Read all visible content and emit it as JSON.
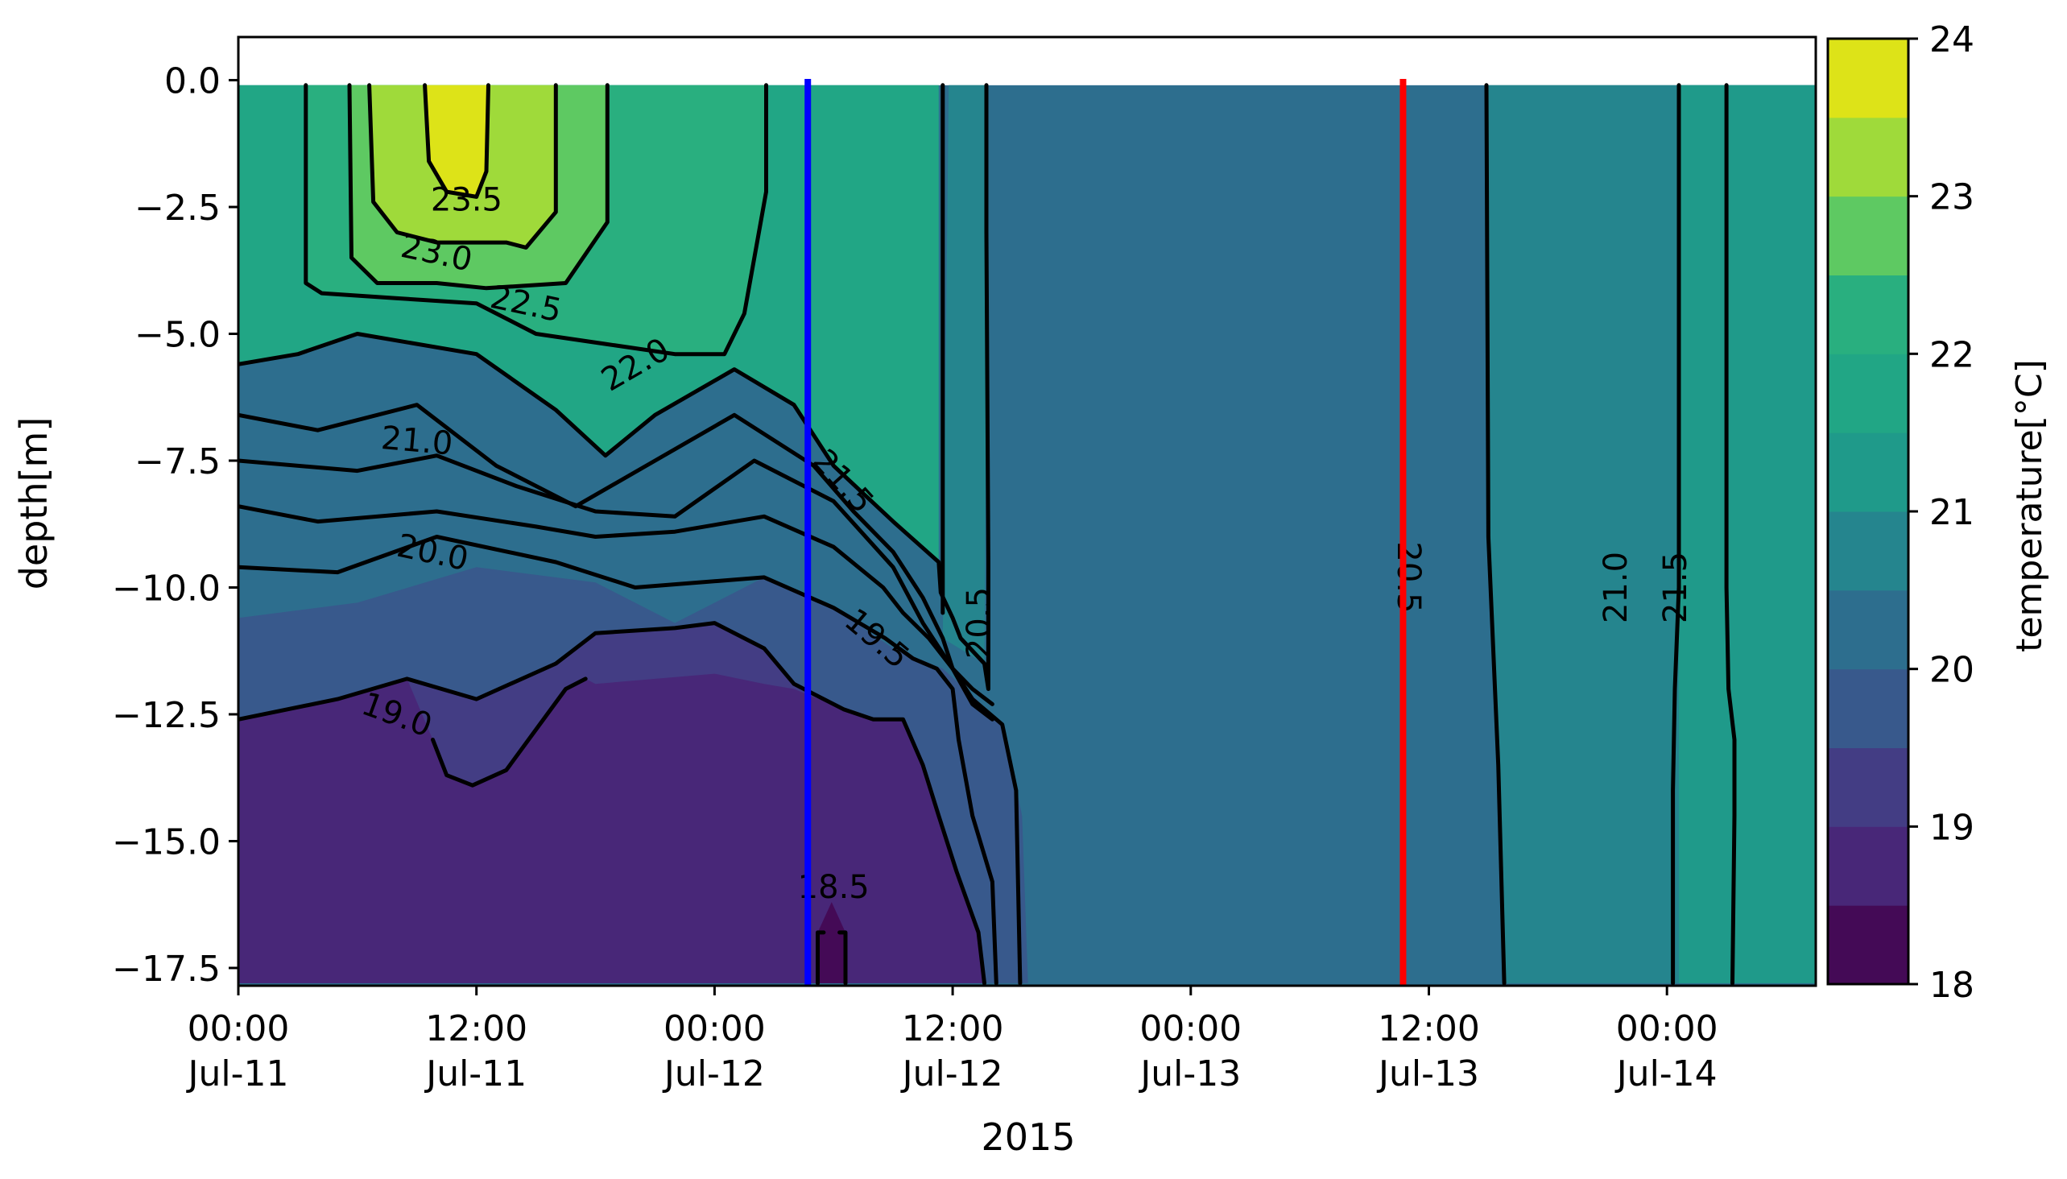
{
  "chart_data": {
    "type": "heatmap",
    "subtype": "filled-contour",
    "xlabel": "2015",
    "ylabel": "depth[m]",
    "colorbar_label": "temperature[°C]",
    "x_unit": "hours since 00:00 Jul-11",
    "x_ticks": [
      {
        "hours": 0,
        "line1": "00:00",
        "line2": "Jul-11"
      },
      {
        "hours": 12,
        "line1": "12:00",
        "line2": "Jul-11"
      },
      {
        "hours": 24,
        "line1": "00:00",
        "line2": "Jul-12"
      },
      {
        "hours": 36,
        "line1": "12:00",
        "line2": "Jul-12"
      },
      {
        "hours": 48,
        "line1": "00:00",
        "line2": "Jul-13"
      },
      {
        "hours": 60,
        "line1": "12:00",
        "line2": "Jul-13"
      },
      {
        "hours": 72,
        "line1": "00:00",
        "line2": "Jul-14"
      }
    ],
    "xlim": [
      0,
      79.5
    ],
    "ylim": [
      -17.85,
      0.85
    ],
    "y_ticks": [
      "0.0",
      "−2.5",
      "−5.0",
      "−7.5",
      "−10.0",
      "−12.5",
      "−15.0",
      "−17.5"
    ],
    "y_tick_values": [
      0.0,
      -2.5,
      -5.0,
      -7.5,
      -10.0,
      -12.5,
      -15.0,
      -17.5
    ],
    "data_top_depth": -0.1,
    "colorbar_ticks": [
      "18",
      "19",
      "20",
      "21",
      "22",
      "23",
      "24"
    ],
    "colorbar_tick_values": [
      18,
      19,
      20,
      21,
      22,
      23,
      24
    ],
    "levels": [
      18.0,
      18.5,
      19.0,
      19.5,
      20.0,
      20.5,
      21.0,
      21.5,
      22.0,
      22.5,
      23.0,
      23.5,
      24.0
    ],
    "level_colors": [
      "#440a56",
      "#482778",
      "#433d84",
      "#38598c",
      "#2d6e8e",
      "#25858e",
      "#1f9a8a",
      "#21a685",
      "#29af7f",
      "#5ec962",
      "#9fda3a",
      "#dde318"
    ],
    "regions": [
      {
        "temp_band": "18.0-18.5",
        "points": [
          [
            29.2,
            -17.8
          ],
          [
            29.2,
            -16.8
          ],
          [
            29.9,
            -16.2
          ],
          [
            30.6,
            -16.8
          ],
          [
            30.6,
            -17.8
          ]
        ]
      },
      {
        "temp_band": "19.5-20.0",
        "points": [
          [
            0,
            -17.8
          ],
          [
            0,
            -10.6
          ],
          [
            6,
            -10.3
          ],
          [
            12,
            -9.6
          ],
          [
            18,
            -9.9
          ],
          [
            22,
            -10.7
          ],
          [
            26.5,
            -9.8
          ],
          [
            30,
            -10.4
          ],
          [
            33,
            -11.2
          ],
          [
            35.5,
            -11.6
          ],
          [
            37.2,
            -12.2
          ],
          [
            38.6,
            -12.8
          ],
          [
            39.5,
            -14.5
          ],
          [
            39.8,
            -17.8
          ]
        ]
      },
      {
        "temp_band": "20.5-21.0",
        "points": [
          [
            35.5,
            -11.0
          ],
          [
            35.8,
            0.0
          ],
          [
            79.5,
            0.0
          ],
          [
            79.5,
            -17.8
          ],
          [
            63.8,
            -17.8
          ],
          [
            63.5,
            -13.5
          ],
          [
            63.0,
            -9.0
          ],
          [
            62.9,
            0.0
          ],
          [
            37.8,
            0.0
          ],
          [
            37.6,
            -11.5
          ]
        ]
      },
      {
        "temp_band": "21.0-21.5",
        "points": [
          [
            72.6,
            0.0
          ],
          [
            79.5,
            0.0
          ],
          [
            79.5,
            -17.8
          ],
          [
            72.6,
            -17.8
          ]
        ]
      },
      {
        "temp_band": "21.5-22.0",
        "points": [
          [
            0,
            -5.6
          ],
          [
            0,
            0.0
          ],
          [
            35.3,
            0.0
          ],
          [
            35.3,
            -9.5
          ],
          [
            33.0,
            -8.7
          ],
          [
            30.0,
            -7.6
          ],
          [
            28.0,
            -6.4
          ],
          [
            25.0,
            -5.7
          ],
          [
            21.0,
            -6.6
          ],
          [
            18.5,
            -7.4
          ],
          [
            16.0,
            -6.5
          ],
          [
            12.0,
            -5.4
          ],
          [
            6.0,
            -5.0
          ],
          [
            3.0,
            -5.4
          ]
        ]
      },
      {
        "temp_band": "22.0-22.5",
        "points": [
          [
            3.4,
            0.0
          ],
          [
            3.4,
            -4.0
          ],
          [
            4.2,
            -4.2
          ],
          [
            8.0,
            -4.3
          ],
          [
            12.0,
            -4.4
          ],
          [
            15.0,
            -5.0
          ],
          [
            18.5,
            -5.2
          ],
          [
            22.0,
            -5.4
          ],
          [
            24.5,
            -5.4
          ],
          [
            25.5,
            -4.6
          ],
          [
            26.6,
            -2.2
          ],
          [
            26.6,
            0.0
          ]
        ]
      },
      {
        "temp_band": "22.5-23.0",
        "points": [
          [
            5.6,
            0.0
          ],
          [
            5.7,
            -3.5
          ],
          [
            7.0,
            -4.0
          ],
          [
            10.0,
            -4.0
          ],
          [
            14.0,
            -4.1
          ],
          [
            16.5,
            -4.0
          ],
          [
            18.6,
            -2.8
          ],
          [
            18.6,
            0.0
          ]
        ]
      },
      {
        "temp_band": "23.0-23.5",
        "points": [
          [
            6.6,
            0.0
          ],
          [
            6.8,
            -2.4
          ],
          [
            8.0,
            -3.0
          ],
          [
            10.0,
            -3.2
          ],
          [
            13.5,
            -3.2
          ],
          [
            14.5,
            -3.3
          ],
          [
            16.0,
            -2.6
          ],
          [
            16.0,
            0.0
          ]
        ]
      },
      {
        "temp_band": "23.5-24.0",
        "points": [
          [
            9.4,
            0.0
          ],
          [
            9.6,
            -1.6
          ],
          [
            10.5,
            -2.2
          ],
          [
            12.0,
            -2.3
          ],
          [
            12.5,
            -1.8
          ],
          [
            12.6,
            0.0
          ]
        ]
      }
    ],
    "contours": [
      {
        "points": [
          [
            0,
            -5.6
          ],
          [
            3,
            -5.4
          ],
          [
            6,
            -5.0
          ],
          [
            12,
            -5.4
          ],
          [
            16,
            -6.5
          ],
          [
            18.5,
            -7.4
          ],
          [
            21,
            -6.6
          ],
          [
            25,
            -5.7
          ],
          [
            28,
            -6.4
          ],
          [
            30,
            -7.6
          ],
          [
            33,
            -8.7
          ],
          [
            35.3,
            -9.5
          ],
          [
            35.4,
            -10.1
          ],
          [
            36.0,
            -10.6
          ],
          [
            36.4,
            -11.0
          ],
          [
            37.6,
            -11.5
          ],
          [
            37.8,
            -12.0
          ],
          [
            37.8,
            -9.5
          ],
          [
            37.7,
            -3.0
          ],
          [
            37.7,
            0.0
          ]
        ]
      },
      {
        "points": [
          [
            0,
            -6.6
          ],
          [
            4,
            -6.9
          ],
          [
            9,
            -6.4
          ],
          [
            13,
            -7.6
          ],
          [
            17,
            -8.4
          ],
          [
            21,
            -7.5
          ],
          [
            25,
            -6.6
          ],
          [
            29,
            -7.6
          ],
          [
            31,
            -8.5
          ],
          [
            33,
            -9.3
          ],
          [
            34.5,
            -10.2
          ],
          [
            35.5,
            -11.0
          ],
          [
            36.0,
            -11.6
          ],
          [
            37.0,
            -12.3
          ],
          [
            38.0,
            -12.6
          ]
        ]
      },
      {
        "points": [
          [
            0,
            -7.5
          ],
          [
            6,
            -7.7
          ],
          [
            10,
            -7.4
          ],
          [
            14,
            -8.0
          ],
          [
            18,
            -8.5
          ],
          [
            22,
            -8.6
          ],
          [
            26,
            -7.5
          ],
          [
            30,
            -8.3
          ],
          [
            33,
            -9.6
          ],
          [
            34.5,
            -10.7
          ],
          [
            36.0,
            -11.6
          ],
          [
            37.0,
            -12.0
          ],
          [
            38.0,
            -12.3
          ]
        ]
      },
      {
        "points": [
          [
            0,
            -8.4
          ],
          [
            4,
            -8.7
          ],
          [
            10,
            -8.5
          ],
          [
            15,
            -8.8
          ],
          [
            18,
            -9.0
          ],
          [
            22,
            -8.9
          ],
          [
            26.5,
            -8.6
          ],
          [
            30,
            -9.2
          ],
          [
            32.5,
            -10.0
          ],
          [
            33.5,
            -10.5
          ],
          [
            34.8,
            -11.0
          ],
          [
            36.0,
            -11.6
          ],
          [
            37.0,
            -12.2
          ],
          [
            38.5,
            -12.7
          ],
          [
            39.2,
            -14.0
          ],
          [
            39.4,
            -17.8
          ]
        ]
      },
      {
        "points": [
          [
            0,
            -9.6
          ],
          [
            5,
            -9.7
          ],
          [
            10,
            -9.0
          ],
          [
            16,
            -9.5
          ],
          [
            20,
            -10.0
          ],
          [
            26.5,
            -9.8
          ],
          [
            30,
            -10.4
          ],
          [
            32.6,
            -11.0
          ],
          [
            34.0,
            -11.4
          ],
          [
            35.2,
            -11.6
          ],
          [
            36.0,
            -12.0
          ],
          [
            36.3,
            -13.0
          ],
          [
            37.0,
            -14.5
          ],
          [
            38.0,
            -15.8
          ],
          [
            38.2,
            -17.8
          ]
        ]
      },
      {
        "points": [
          [
            0,
            -12.6
          ],
          [
            5,
            -12.2
          ],
          [
            8.5,
            -11.8
          ],
          [
            12,
            -12.2
          ],
          [
            16,
            -11.5
          ],
          [
            18,
            -10.9
          ],
          [
            22,
            -10.8
          ],
          [
            24,
            -10.7
          ],
          [
            26.5,
            -11.2
          ],
          [
            28,
            -11.9
          ],
          [
            30.5,
            -12.4
          ],
          [
            32,
            -12.6
          ],
          [
            33.5,
            -12.6
          ],
          [
            34.5,
            -13.5
          ],
          [
            35.3,
            -14.5
          ],
          [
            36.2,
            -15.6
          ],
          [
            37.3,
            -16.8
          ],
          [
            37.6,
            -17.8
          ]
        ]
      },
      {
        "points": [
          [
            9.8,
            -13.0
          ],
          [
            10.5,
            -13.7
          ],
          [
            11.8,
            -13.9
          ],
          [
            13.5,
            -13.6
          ],
          [
            16.5,
            -12.0
          ],
          [
            17.5,
            -11.8
          ]
        ]
      },
      {
        "points": [
          [
            29.2,
            -17.8
          ],
          [
            29.2,
            -16.8
          ],
          [
            29.5,
            -16.8
          ]
        ]
      },
      {
        "points": [
          [
            30.3,
            -16.8
          ],
          [
            30.6,
            -16.8
          ],
          [
            30.6,
            -17.8
          ]
        ]
      },
      {
        "points": [
          [
            3.4,
            0.0
          ],
          [
            3.4,
            -4.0
          ],
          [
            4.2,
            -4.2
          ],
          [
            8,
            -4.3
          ],
          [
            12,
            -4.4
          ],
          [
            15,
            -5.0
          ],
          [
            18.5,
            -5.2
          ],
          [
            22,
            -5.4
          ],
          [
            24.5,
            -5.4
          ],
          [
            25.5,
            -4.6
          ],
          [
            26.6,
            -2.2
          ],
          [
            26.6,
            0.0
          ]
        ]
      },
      {
        "points": [
          [
            5.6,
            0.0
          ],
          [
            5.7,
            -3.5
          ],
          [
            7,
            -4.0
          ],
          [
            10,
            -4.0
          ],
          [
            12.5,
            -4.1
          ],
          [
            16.5,
            -4.0
          ],
          [
            18.6,
            -2.8
          ],
          [
            18.6,
            0.0
          ]
        ]
      },
      {
        "points": [
          [
            9.4,
            0.0
          ],
          [
            9.6,
            -1.6
          ],
          [
            10.5,
            -2.2
          ],
          [
            12.0,
            -2.3
          ],
          [
            12.5,
            -1.8
          ],
          [
            12.6,
            0.0
          ]
        ]
      },
      {
        "points": [
          [
            6.6,
            0.0
          ],
          [
            6.8,
            -2.4
          ],
          [
            8,
            -3.0
          ],
          [
            10,
            -3.2
          ],
          [
            13.5,
            -3.2
          ],
          [
            14.5,
            -3.3
          ],
          [
            16,
            -2.6
          ],
          [
            16,
            0.0
          ]
        ]
      },
      {
        "points": [
          [
            35.5,
            0.0
          ],
          [
            35.5,
            -8.5
          ],
          [
            35.5,
            -10.5
          ]
        ]
      },
      {
        "points": [
          [
            62.9,
            0.0
          ],
          [
            63.0,
            -9.0
          ],
          [
            63.5,
            -13.5
          ],
          [
            63.8,
            -17.8
          ]
        ]
      },
      {
        "points": [
          [
            72.6,
            0.0
          ],
          [
            72.6,
            -6.0
          ],
          [
            72.6,
            -10.0
          ],
          [
            72.4,
            -12.0
          ],
          [
            72.3,
            -14.0
          ],
          [
            72.3,
            -17.8
          ]
        ]
      },
      {
        "points": [
          [
            75.0,
            0.0
          ],
          [
            75.0,
            -6.0
          ],
          [
            75.0,
            -10.0
          ],
          [
            75.1,
            -12.0
          ],
          [
            75.4,
            -13.0
          ],
          [
            75.4,
            -14.5
          ],
          [
            75.3,
            -17.8
          ]
        ]
      }
    ],
    "contour_labels": [
      {
        "text": "23.5",
        "hours": 11.5,
        "depth": -2.35,
        "angle": 0
      },
      {
        "text": "23.0",
        "hours": 10.0,
        "depth": -3.4,
        "angle": 12
      },
      {
        "text": "22.5",
        "hours": 14.5,
        "depth": -4.4,
        "angle": 12
      },
      {
        "text": "22.0",
        "hours": 20.0,
        "depth": -5.6,
        "angle": -30
      },
      {
        "text": "21.5",
        "hours": 30.5,
        "depth": -7.9,
        "angle": 48
      },
      {
        "text": "21.0",
        "hours": 9.0,
        "depth": -7.1,
        "angle": 5
      },
      {
        "text": "20.0",
        "hours": 9.8,
        "depth": -9.3,
        "angle": 12
      },
      {
        "text": "19.5",
        "hours": 32.2,
        "depth": -11.0,
        "angle": 40
      },
      {
        "text": "19.0",
        "hours": 8.0,
        "depth": -12.5,
        "angle": 20
      },
      {
        "text": "18.5",
        "hours": 30.0,
        "depth": -15.9,
        "angle": 0
      },
      {
        "text": "20.5",
        "hours": 37.3,
        "depth": -10.7,
        "angle": -90
      },
      {
        "text": "20.5",
        "hours": 59.0,
        "depth": -9.8,
        "angle": 90
      },
      {
        "text": "21.0",
        "hours": 69.4,
        "depth": -10.0,
        "angle": -90
      },
      {
        "text": "21.5",
        "hours": 72.4,
        "depth": -10.0,
        "angle": -90
      }
    ],
    "markers": [
      {
        "hours": 28.7,
        "color": "#0000ff"
      },
      {
        "hours": 58.7,
        "color": "#ff0000"
      }
    ],
    "grid": false
  }
}
